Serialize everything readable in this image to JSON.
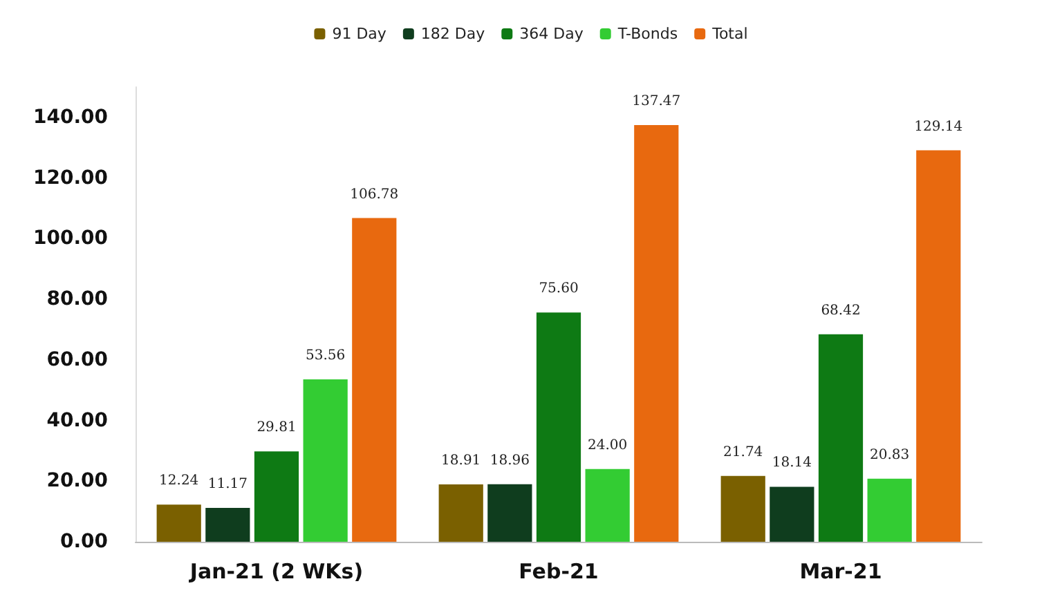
{
  "chart_data": {
    "type": "bar",
    "categories": [
      "Jan-21 (2 WKs)",
      "Feb-21",
      "Mar-21"
    ],
    "series": [
      {
        "name": "91 Day",
        "color": "#7a6000",
        "values": [
          12.24,
          18.91,
          21.74
        ],
        "value_labels": [
          "12.24",
          "18.91",
          "21.74"
        ]
      },
      {
        "name": "182 Day",
        "color": "#0f3d1e",
        "values": [
          11.17,
          18.96,
          18.14
        ],
        "value_labels": [
          "11.17",
          "18.96",
          "18.14"
        ]
      },
      {
        "name": "364 Day",
        "color": "#0e7a14",
        "values": [
          29.81,
          75.6,
          68.42
        ],
        "value_labels": [
          "29.81",
          "75.60",
          "68.42"
        ]
      },
      {
        "name": "T-Bonds",
        "color": "#33cc33",
        "values": [
          53.56,
          24.0,
          20.83
        ],
        "value_labels": [
          "53.56",
          "24.00",
          "20.83"
        ]
      },
      {
        "name": "Total",
        "color": "#e8690f",
        "values": [
          106.78,
          137.47,
          129.14
        ],
        "value_labels": [
          "106.78",
          "137.47",
          "129.14"
        ]
      }
    ],
    "ylim": [
      0,
      150
    ],
    "yticks": [
      {
        "value": 0,
        "label": "0.00"
      },
      {
        "value": 20,
        "label": "20.00"
      },
      {
        "value": 40,
        "label": "40.00"
      },
      {
        "value": 60,
        "label": "60.00"
      },
      {
        "value": 80,
        "label": "80.00"
      },
      {
        "value": 100,
        "label": "100.00"
      },
      {
        "value": 120,
        "label": "120.00"
      },
      {
        "value": 140,
        "label": "140.00"
      }
    ],
    "grid": false,
    "legend": "top"
  }
}
